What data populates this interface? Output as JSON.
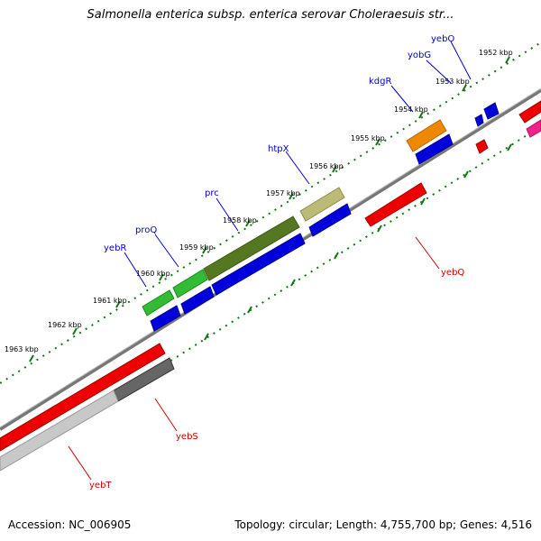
{
  "title": "Salmonella enterica subsp. enterica serovar Choleraesuis str...",
  "footer": {
    "accession": "Accession: NC_006905",
    "info": "Topology: circular; Length: 4,755,700 bp; Genes: 4,516"
  },
  "kbp_labels": [
    "1952 kbp",
    "1953 kbp",
    "1954 kbp",
    "1955 kbp",
    "1956 kbp",
    "1957 kbp",
    "1958 kbp",
    "1959 kbp",
    "1960 kbp",
    "1961 kbp",
    "1962 kbp",
    "1963 kbp"
  ],
  "genes_forward": [
    "yebO",
    "yobG",
    "kdgR",
    "htpX",
    "prc",
    "proQ",
    "yebR"
  ],
  "genes_reverse": [
    "yebQ",
    "yebS",
    "yebT"
  ],
  "colors": {
    "forward_cds": "#0000dd",
    "reverse_cds": "#ee0000",
    "backbone": "#888888",
    "tick": "#117711",
    "green": "#33bb33",
    "olive": "#557722",
    "khaki": "#bbbb77",
    "orange": "#ee8800",
    "grey": "#666666",
    "light_grey": "#c8c8c8",
    "pink": "#ee2288"
  }
}
